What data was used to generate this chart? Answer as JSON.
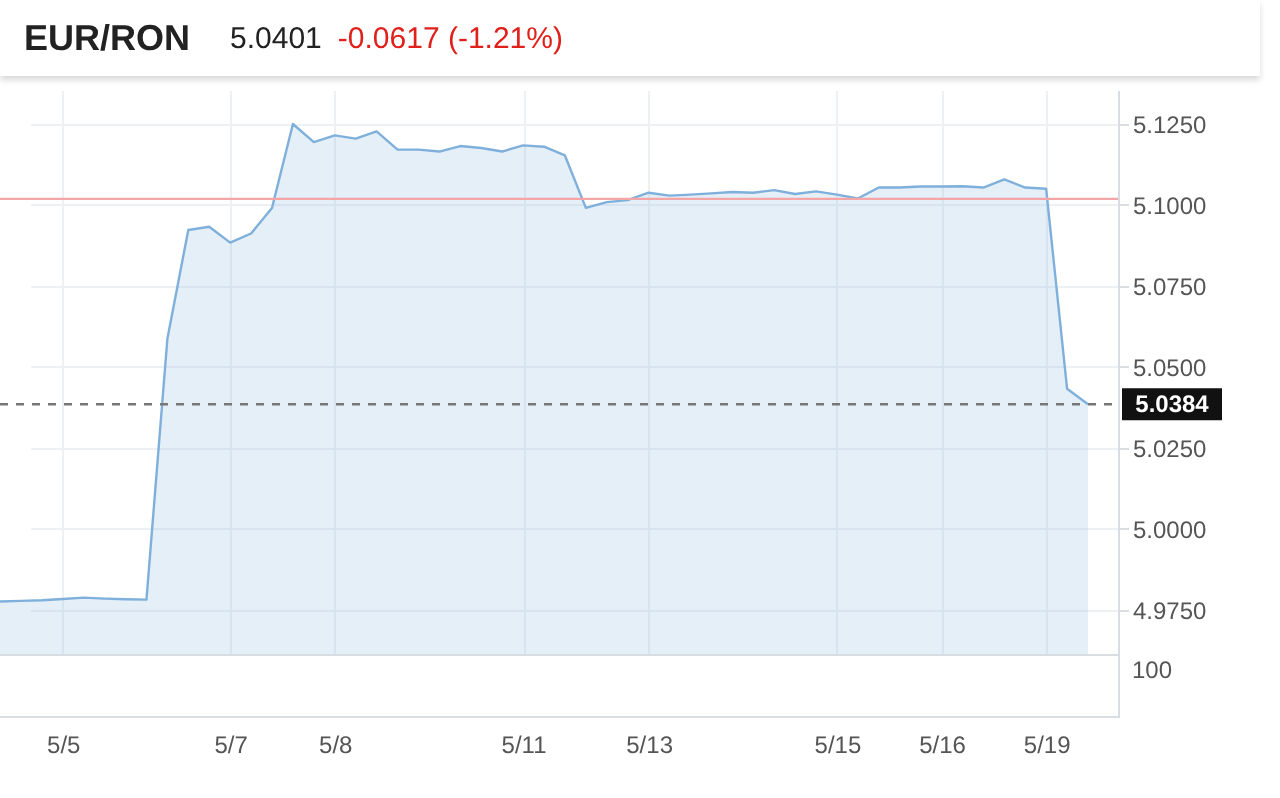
{
  "chart_data": [
    {
      "type": "area",
      "title": "EUR/RON",
      "annotations": [
        "5.0401",
        "-0.0617 (-1.21%)"
      ],
      "categories": [
        null,
        null,
        null,
        "5/5",
        null,
        null,
        null,
        null,
        null,
        null,
        null,
        "5/7",
        null,
        null,
        null,
        null,
        "5/8",
        null,
        null,
        null,
        null,
        null,
        null,
        null,
        null,
        "5/11",
        null,
        null,
        null,
        null,
        null,
        "5/13",
        null,
        null,
        null,
        null,
        null,
        null,
        null,
        null,
        "5/15",
        null,
        null,
        null,
        null,
        "5/16",
        null,
        null,
        null,
        null,
        "5/19",
        null,
        null
      ],
      "series": [
        {
          "color": "#7fb0db",
          "values": [
            4.9775,
            4.9777,
            4.9779,
            4.9783,
            4.9787,
            4.9784,
            4.9782,
            4.9781,
            5.0586,
            5.0922,
            5.0932,
            5.0883,
            5.0911,
            5.099,
            5.1249,
            5.1193,
            5.1214,
            5.1204,
            5.1226,
            5.117,
            5.117,
            5.1164,
            5.1181,
            5.1175,
            5.1164,
            5.1183,
            5.1179,
            5.1152,
            5.099,
            5.1008,
            5.1014,
            5.1037,
            5.1028,
            5.1031,
            5.1035,
            5.1039,
            5.1037,
            5.1045,
            5.1033,
            5.1041,
            5.1031,
            5.1019,
            5.1053,
            5.1053,
            5.1056,
            5.1056,
            5.1057,
            5.1053,
            5.1078,
            5.1053,
            5.1049,
            5.0432,
            5.0384
          ]
        }
      ],
      "ylim": [
        4.9613,
        5.1354
      ],
      "yticks": [
        {
          "value": 4.975,
          "label": "4.9750"
        },
        {
          "value": 5,
          "label": "5.0000"
        },
        {
          "value": 5.025,
          "label": "5.0250"
        },
        {
          "value": 5.05,
          "label": "5.0500"
        },
        {
          "value": 5.075,
          "label": "5.0750"
        },
        {
          "value": 5.1,
          "label": "5.1000"
        },
        {
          "value": 5.125,
          "label": "5.1250"
        }
      ],
      "ref_lines": [
        {
          "axis": "y",
          "value": 5.1018,
          "color": "#f4a6a6",
          "line_style": "solid"
        },
        {
          "axis": "y",
          "value": 5.0384,
          "label": "5.0384",
          "color": "#777777",
          "line_style": "dashed"
        }
      ],
      "grid": true
    },
    {
      "type": "other",
      "annotations": [
        "100"
      ]
    }
  ]
}
